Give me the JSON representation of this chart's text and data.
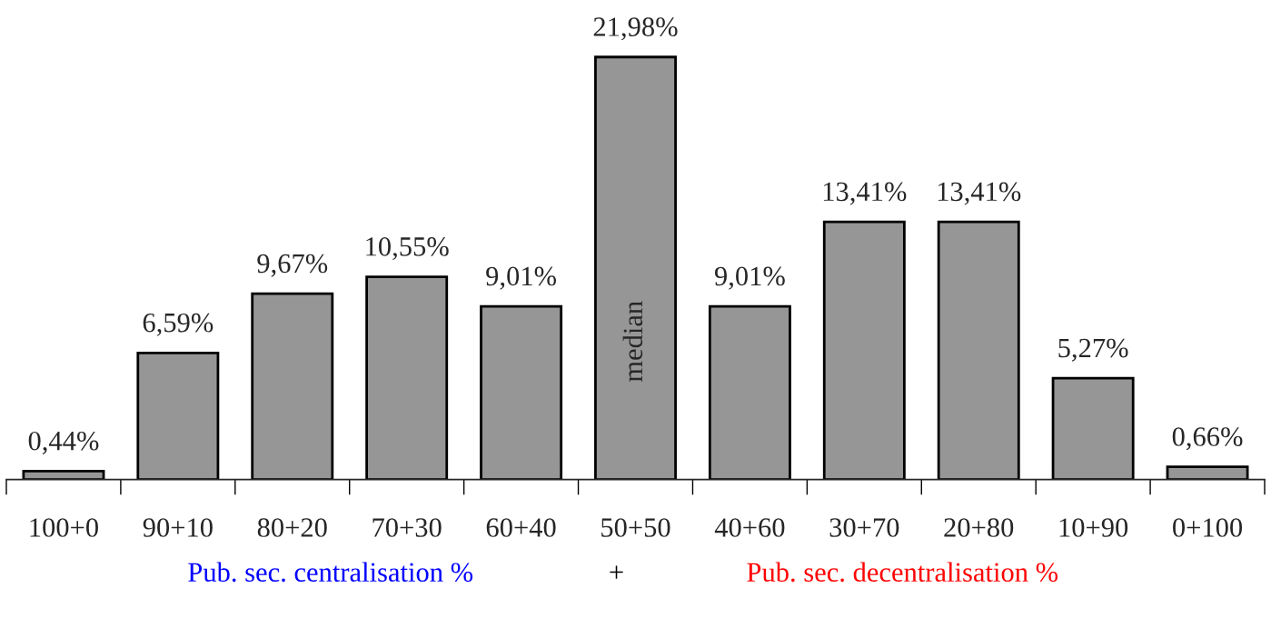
{
  "chart_data": {
    "type": "bar",
    "categories": [
      "100+0",
      "90+10",
      "80+20",
      "70+30",
      "60+40",
      "50+50",
      "40+60",
      "30+70",
      "20+80",
      "10+90",
      "0+100"
    ],
    "values": [
      0.44,
      6.59,
      9.67,
      10.55,
      9.01,
      21.98,
      9.01,
      13.41,
      13.41,
      5.27,
      0.66
    ],
    "value_labels": [
      "0,44%",
      "6,59%",
      "9,67%",
      "10,55%",
      "9,01%",
      "21,98%",
      "9,01%",
      "13,41%",
      "13,41%",
      "5,27%",
      "0,66%"
    ],
    "color": "#969696",
    "annotations": [
      "median",
      "Pub. sec. centralisation %",
      "+",
      "Pub. sec. decentralisation %"
    ],
    "grid": false,
    "legend": false
  }
}
